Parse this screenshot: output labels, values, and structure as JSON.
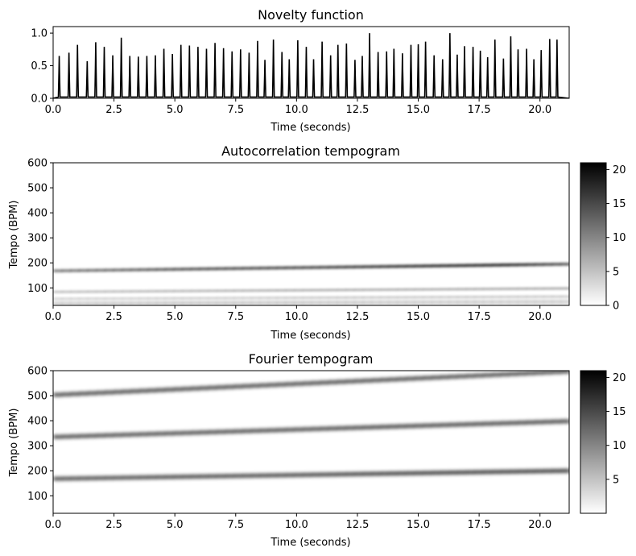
{
  "chart_data": [
    {
      "type": "line",
      "title": "Novelty function",
      "xlabel": "Time (seconds)",
      "ylabel": "",
      "xlim": [
        0,
        21.2
      ],
      "ylim": [
        0,
        1.1
      ],
      "xticks": [
        "0.0",
        "2.5",
        "5.0",
        "7.5",
        "10.0",
        "12.5",
        "15.0",
        "17.5",
        "20.0"
      ],
      "yticks": [
        "0.0",
        "0.5",
        "1.0"
      ],
      "series": [
        {
          "x": [
            0.25,
            0.65,
            1.0,
            1.4,
            1.75,
            2.1,
            2.45,
            2.8,
            3.15,
            3.5,
            3.85,
            4.2,
            4.55,
            4.9,
            5.25,
            5.6,
            5.95,
            6.3,
            6.65,
            7.0,
            7.35,
            7.7,
            8.05,
            8.4,
            8.7,
            9.05,
            9.4,
            9.7,
            10.05,
            10.4,
            10.7,
            11.05,
            11.4,
            11.7,
            12.05,
            12.4,
            12.7,
            13.0,
            13.35,
            13.7,
            14.0,
            14.35,
            14.7,
            15.0,
            15.3,
            15.65,
            16.0,
            16.3,
            16.6,
            16.9,
            17.25,
            17.55,
            17.85,
            18.15,
            18.5,
            18.8,
            19.1,
            19.45,
            19.75,
            20.05,
            20.4,
            20.7
          ],
          "values": [
            0.65,
            0.7,
            0.82,
            0.57,
            0.86,
            0.79,
            0.66,
            0.93,
            0.65,
            0.64,
            0.65,
            0.66,
            0.76,
            0.68,
            0.82,
            0.81,
            0.79,
            0.76,
            0.85,
            0.77,
            0.72,
            0.75,
            0.7,
            0.88,
            0.59,
            0.9,
            0.71,
            0.6,
            0.89,
            0.79,
            0.6,
            0.87,
            0.66,
            0.82,
            0.84,
            0.59,
            0.65,
            1.0,
            0.71,
            0.72,
            0.76,
            0.69,
            0.82,
            0.83,
            0.87,
            0.66,
            0.6,
            1.0,
            0.67,
            0.8,
            0.79,
            0.73,
            0.63,
            0.9,
            0.61,
            0.95,
            0.75,
            0.76,
            0.6,
            0.74,
            0.91,
            0.9
          ]
        }
      ]
    },
    {
      "type": "heatmap",
      "title": "Autocorrelation tempogram",
      "xlabel": "Time (seconds)",
      "ylabel": "Tempo (BPM)",
      "xlim": [
        0,
        21.2
      ],
      "ylim": [
        30,
        600
      ],
      "xticks": [
        "0.0",
        "2.5",
        "5.0",
        "7.5",
        "10.0",
        "12.5",
        "15.0",
        "17.5",
        "20.0"
      ],
      "yticks": [
        "100",
        "200",
        "300",
        "400",
        "500",
        "600"
      ],
      "colorscale": [
        "#ffffff",
        "#000000"
      ],
      "colorbar_range": [
        0,
        21
      ],
      "colorbar_ticks": [
        "0",
        "5",
        "10",
        "15",
        "20"
      ],
      "bands": [
        {
          "tempo_start": 168,
          "tempo_end": 195,
          "intensity": [
            0.55,
            0.62,
            0.72,
            0.75,
            0.78,
            0.85,
            0.92,
            0.95,
            0.72
          ],
          "width_bpm": 10
        },
        {
          "tempo_start": 84,
          "tempo_end": 98,
          "intensity": [
            0.7,
            0.75,
            0.8,
            0.85,
            0.9,
            0.9,
            0.9,
            0.92,
            0.92
          ],
          "width_bpm": 3
        },
        {
          "tempo_start": 57,
          "tempo_end": 66,
          "intensity": [
            0.5,
            0.5,
            0.55,
            0.55,
            0.6,
            0.6,
            0.6,
            0.6,
            0.6
          ],
          "width_bpm": 1.6
        },
        {
          "tempo_start": 42,
          "tempo_end": 49,
          "intensity": [
            0.45,
            0.45,
            0.5,
            0.5,
            0.5,
            0.5,
            0.5,
            0.5,
            0.5
          ],
          "width_bpm": 1.3
        },
        {
          "tempo_start": 34,
          "tempo_end": 39,
          "intensity": [
            0.4,
            0.4,
            0.4,
            0.4,
            0.4,
            0.4,
            0.4,
            0.4,
            0.4
          ],
          "width_bpm": 1.2
        }
      ]
    },
    {
      "type": "heatmap",
      "title": "Fourier tempogram",
      "xlabel": "Time (seconds)",
      "ylabel": "Tempo (BPM)",
      "xlim": [
        0,
        21.2
      ],
      "ylim": [
        30,
        600
      ],
      "xticks": [
        "0.0",
        "2.5",
        "5.0",
        "7.5",
        "10.0",
        "12.5",
        "15.0",
        "17.5",
        "20.0"
      ],
      "yticks": [
        "100",
        "200",
        "300",
        "400",
        "500",
        "600"
      ],
      "colorscale": [
        "#ffffff",
        "#000000"
      ],
      "colorbar_range": [
        0,
        21
      ],
      "colorbar_ticks": [
        "5",
        "10",
        "15",
        "20"
      ],
      "bands": [
        {
          "tempo_start": 168,
          "tempo_end": 200,
          "intensity": [
            0.85,
            0.85,
            0.88,
            0.88,
            0.9,
            0.93,
            0.95,
            0.95,
            0.95
          ],
          "width_bpm": 12
        },
        {
          "tempo_start": 335,
          "tempo_end": 398,
          "intensity": [
            0.85,
            0.85,
            0.85,
            0.85,
            0.85,
            0.88,
            0.88,
            0.88,
            0.88
          ],
          "width_bpm": 12
        },
        {
          "tempo_start": 503,
          "tempo_end": 597,
          "intensity": [
            0.85,
            0.85,
            0.85,
            0.85,
            0.85,
            0.85,
            0.85,
            0.85,
            0.85
          ],
          "width_bpm": 12
        }
      ]
    }
  ]
}
